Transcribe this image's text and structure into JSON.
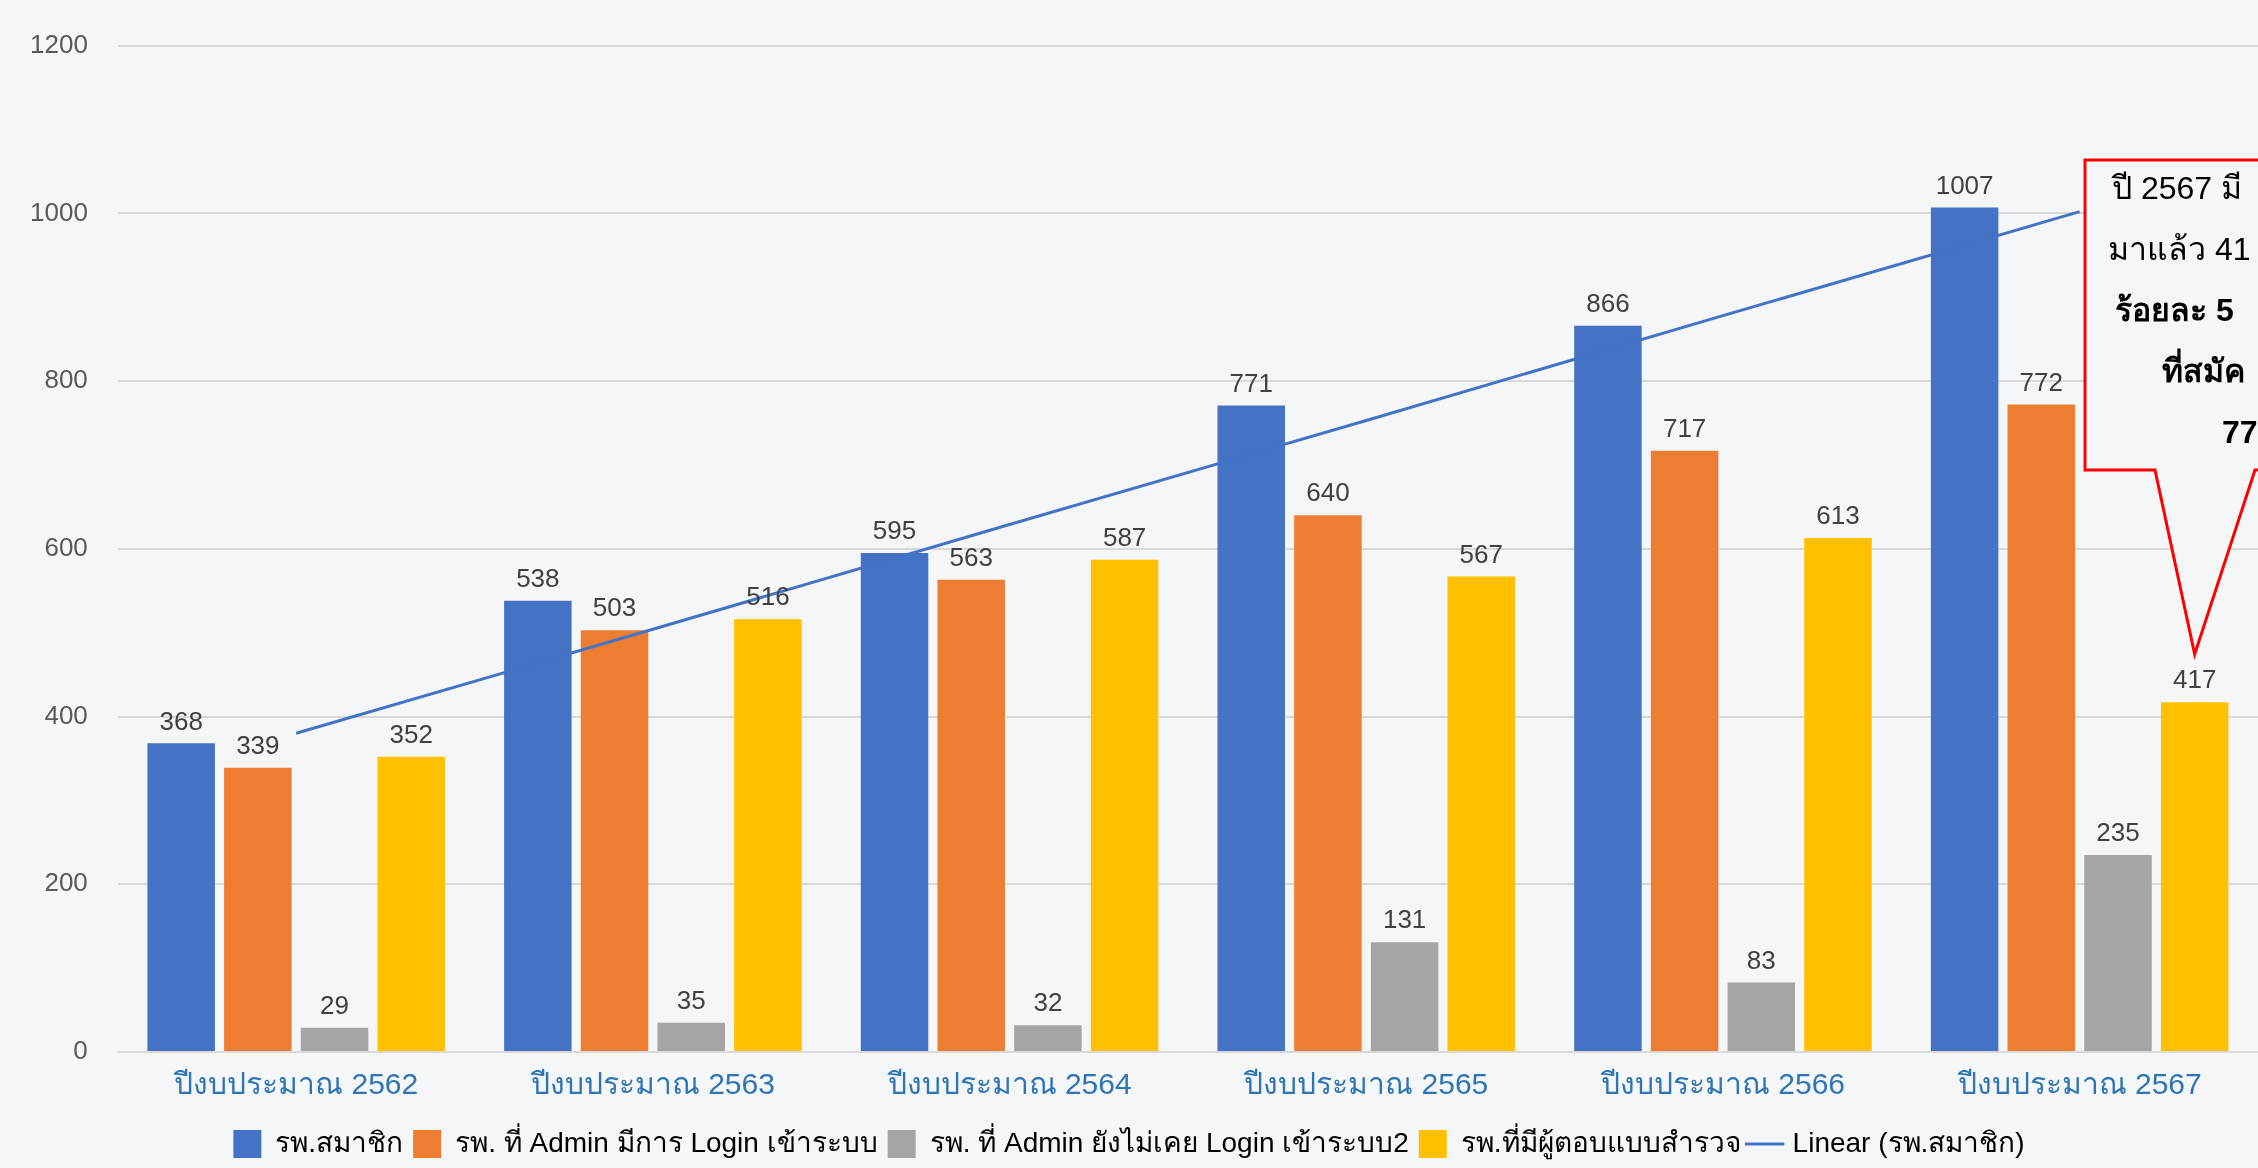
{
  "chart_data": {
    "type": "bar",
    "categories": [
      "ปีงบประมาณ 2562",
      "ปีงบประมาณ 2563",
      "ปีงบประมาณ 2564",
      "ปีงบประมาณ 2565",
      "ปีงบประมาณ 2566",
      "ปีงบประมาณ 2567"
    ],
    "series": [
      {
        "name": "รพ.สมาชิก",
        "color": "#4472c4",
        "values": [
          368,
          538,
          595,
          771,
          866,
          1007
        ],
        "value_labels": [
          "368",
          "538",
          "595",
          "771",
          "866",
          "1007"
        ]
      },
      {
        "name": "รพ. ที่ Admin มีการ Login เข้าระบบ",
        "color": "#ed7d31",
        "values": [
          339,
          503,
          563,
          640,
          717,
          772
        ],
        "value_labels": [
          "339",
          "503",
          "563",
          "640",
          "717",
          "772"
        ]
      },
      {
        "name": "รพ. ที่ Admin ยังไม่เคย Login เข้าระบบ2",
        "color": "#a5a5a5",
        "values": [
          29,
          35,
          32,
          131,
          83,
          235
        ],
        "value_labels": [
          "29",
          "35",
          "32",
          "131",
          "83",
          "235"
        ]
      },
      {
        "name": "รพ.ที่มีผู้ตอบแบบสำรวจ",
        "color": "#ffc000",
        "values": [
          352,
          516,
          587,
          567,
          613,
          417
        ],
        "value_labels": [
          "352",
          "516",
          "587",
          "567",
          "613",
          "417"
        ]
      },
      {
        "name": "Linear (รพ.สมาชิก)",
        "type": "line",
        "color": "#4472c4",
        "values": [
          380,
          504,
          629,
          753,
          878,
          1002
        ]
      }
    ],
    "ylim": [
      0,
      1200
    ],
    "yticks": [
      0,
      200,
      400,
      600,
      800,
      1000,
      1200
    ],
    "grid": "y",
    "legend": "bottom",
    "annotations": [
      "ปี 2567 มี\nมาแล้ว 41\nร้อยละ 5\nที่สมัค\n77"
    ]
  }
}
